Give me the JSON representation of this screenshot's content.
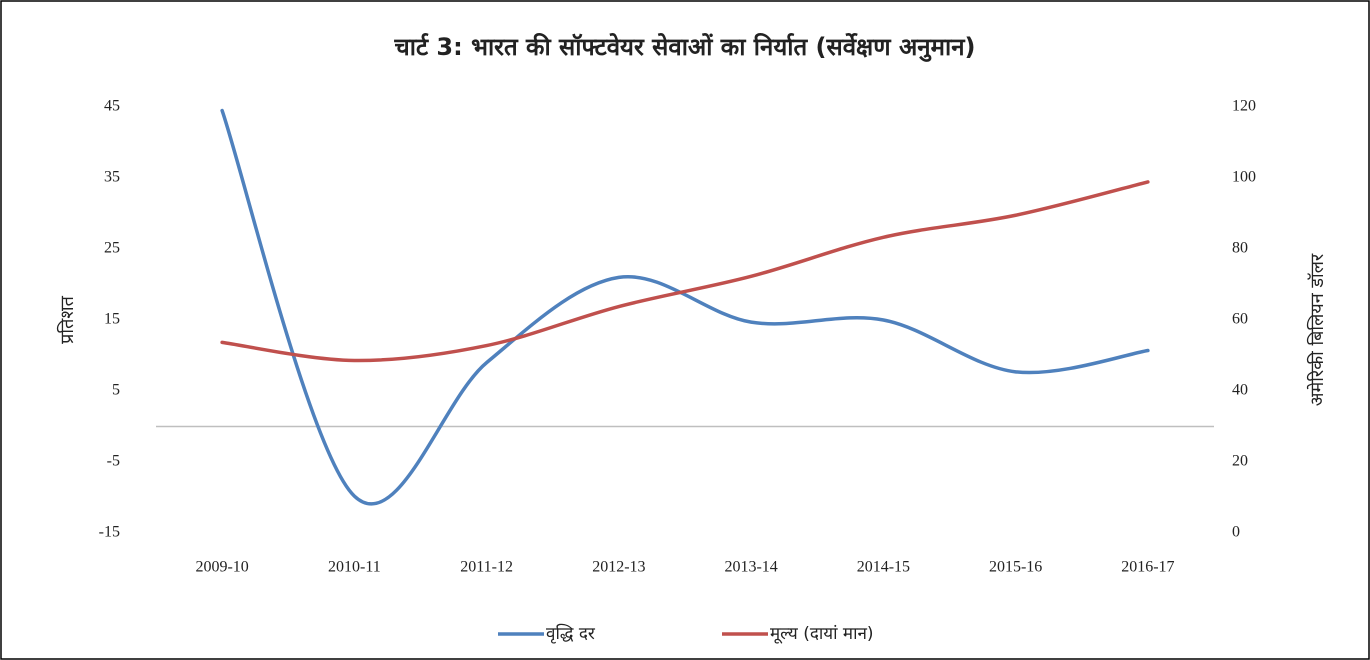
{
  "chart_data": {
    "type": "line",
    "title": "चार्ट 3: भारत की सॉफ्टवेयर सेवाओं का निर्यात (सर्वेक्षण अनुमान)",
    "ylabel": "प्रतिशत",
    "y2label": "अमेरिकी बिलियन डॉलर",
    "categories": [
      "2009-10",
      "2010-11",
      "2011-12",
      "2012-13",
      "2013-14",
      "2014-15",
      "2015-16",
      "2016-17"
    ],
    "series": [
      {
        "name": "वृद्धि दर",
        "color": "#4f81bd",
        "values": [
          44.5,
          -9.8,
          9,
          21,
          14.7,
          15,
          7.7,
          10.7
        ]
      },
      {
        "name": "मूल्य (दायां मान)",
        "color": "#c0504d",
        "axis": "y2",
        "values": [
          53.7,
          48.6,
          52.8,
          63.8,
          72.3,
          83.3,
          89.5,
          98.9
        ]
      }
    ],
    "ylim": [
      -15,
      45
    ],
    "yticks": [
      -15,
      -5,
      5,
      15,
      25,
      35,
      45
    ],
    "y2lim": [
      0,
      120
    ],
    "y2ticks": [
      0,
      20,
      40,
      60,
      80,
      100,
      120
    ],
    "smooth": true,
    "legend": "bottom"
  }
}
